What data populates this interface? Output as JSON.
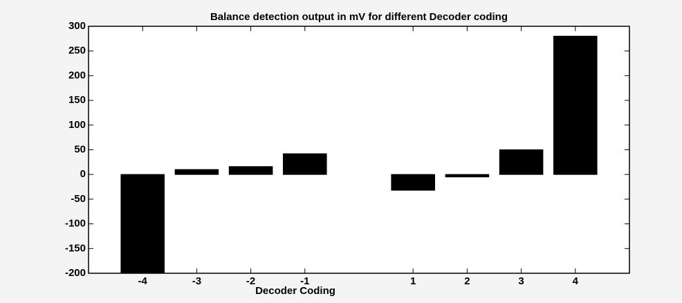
{
  "chart_data": {
    "type": "bar",
    "title": "Balance detection output in mV for different Decoder coding",
    "x_label": "Decoder Coding",
    "x": [
      -4,
      -3,
      -2,
      -1,
      1,
      2,
      3,
      4
    ],
    "values": [
      -200,
      10,
      16,
      42,
      -32,
      -5,
      50,
      280
    ],
    "color": "#000000",
    "xlim": [
      -5,
      5
    ],
    "xticks": [
      -4,
      -3,
      -2,
      -1,
      1,
      2,
      3,
      4
    ],
    "ylim": [
      -200,
      300
    ],
    "yticks": [
      -200,
      -150,
      -100,
      -50,
      0,
      50,
      100,
      150,
      200,
      250,
      300
    ],
    "grid": false
  }
}
